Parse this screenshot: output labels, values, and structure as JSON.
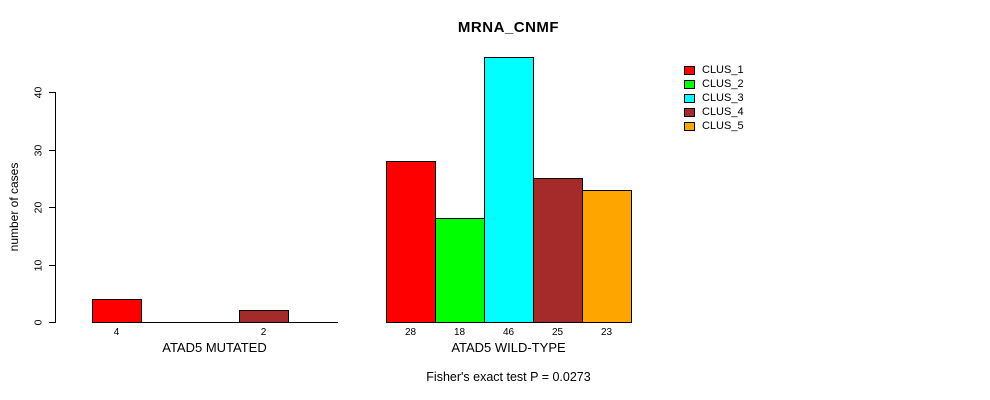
{
  "title": "MRNA_CNMF",
  "footer": "Fisher's exact test P = 0.0273",
  "y_axis": {
    "label": "number of cases",
    "ticks": [
      0,
      10,
      20,
      30,
      40
    ]
  },
  "legend": {
    "items": [
      {
        "label": "CLUS_1",
        "color": "#FF0000"
      },
      {
        "label": "CLUS_2",
        "color": "#00FF00"
      },
      {
        "label": "CLUS_3",
        "color": "#00FFFF"
      },
      {
        "label": "CLUS_4",
        "color": "#A52A2A"
      },
      {
        "label": "CLUS_5",
        "color": "#FFA500"
      }
    ]
  },
  "chart_data": {
    "type": "bar",
    "title": "MRNA_CNMF",
    "xlabel": "",
    "ylabel": "number of cases",
    "categories": [
      "ATAD5 MUTATED",
      "ATAD5 WILD-TYPE"
    ],
    "series": [
      {
        "name": "CLUS_1",
        "color": "#FF0000",
        "values": [
          4,
          28
        ]
      },
      {
        "name": "CLUS_2",
        "color": "#00FF00",
        "values": [
          0,
          18
        ]
      },
      {
        "name": "CLUS_3",
        "color": "#00FFFF",
        "values": [
          0,
          46
        ]
      },
      {
        "name": "CLUS_4",
        "color": "#A52A2A",
        "values": [
          2,
          25
        ]
      },
      {
        "name": "CLUS_5",
        "color": "#FFA500",
        "values": [
          0,
          23
        ]
      }
    ],
    "bar_value_labels": [
      [
        "4",
        "",
        "",
        "2",
        ""
      ],
      [
        "28",
        "18",
        "46",
        "25",
        "23"
      ]
    ],
    "ylim": [
      0,
      40
    ],
    "grid": false,
    "legend_position": "top-right",
    "annotation": "Fisher's exact test P = 0.0273"
  }
}
